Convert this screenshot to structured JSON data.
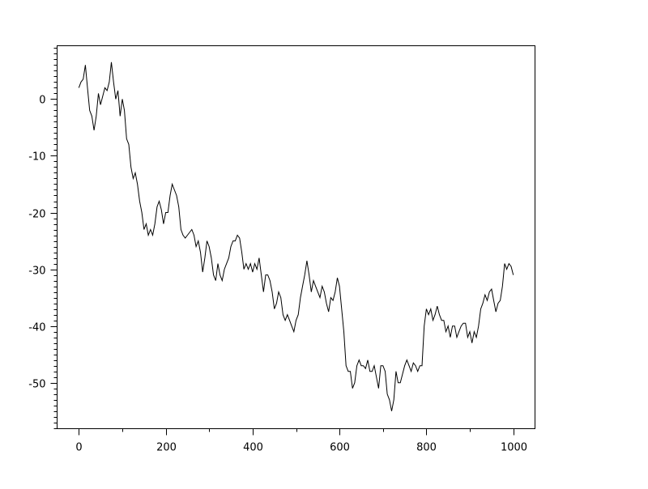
{
  "chart_data": {
    "type": "line",
    "title": "",
    "xlabel": "",
    "ylabel": "",
    "xlim": [
      -50,
      1050
    ],
    "ylim": [
      -58.1,
      9.4
    ],
    "x_ticks": [
      0,
      200,
      400,
      600,
      800,
      1000
    ],
    "x_minor_ticks": [
      100,
      300,
      500,
      700,
      900
    ],
    "y_ticks": [
      0,
      -10,
      -20,
      -30,
      -40,
      -50
    ],
    "y_minor_step": 1,
    "grid": false,
    "line_color": "#000000",
    "series": [
      {
        "points": [
          [
            0,
            2
          ],
          [
            5,
            3
          ],
          [
            10,
            3.5
          ],
          [
            15,
            6
          ],
          [
            20,
            2
          ],
          [
            25,
            -2
          ],
          [
            30,
            -3
          ],
          [
            35,
            -5.5
          ],
          [
            40,
            -3
          ],
          [
            45,
            1
          ],
          [
            50,
            -1
          ],
          [
            55,
            0.5
          ],
          [
            60,
            2
          ],
          [
            65,
            1.5
          ],
          [
            70,
            3
          ],
          [
            75,
            6.5
          ],
          [
            80,
            3
          ],
          [
            85,
            0
          ],
          [
            90,
            1.5
          ],
          [
            95,
            -3
          ],
          [
            100,
            0
          ],
          [
            105,
            -2
          ],
          [
            110,
            -7
          ],
          [
            115,
            -8
          ],
          [
            120,
            -12
          ],
          [
            125,
            -14
          ],
          [
            130,
            -13
          ],
          [
            135,
            -15
          ],
          [
            140,
            -18
          ],
          [
            145,
            -20
          ],
          [
            150,
            -23
          ],
          [
            155,
            -22
          ],
          [
            160,
            -24
          ],
          [
            165,
            -23
          ],
          [
            170,
            -24
          ],
          [
            175,
            -22
          ],
          [
            180,
            -19
          ],
          [
            185,
            -18
          ],
          [
            190,
            -19.5
          ],
          [
            195,
            -22
          ],
          [
            200,
            -20
          ],
          [
            205,
            -20
          ],
          [
            210,
            -17
          ],
          [
            215,
            -15
          ],
          [
            220,
            -16
          ],
          [
            225,
            -17
          ],
          [
            230,
            -19
          ],
          [
            235,
            -23
          ],
          [
            240,
            -24
          ],
          [
            245,
            -24.5
          ],
          [
            250,
            -24
          ],
          [
            255,
            -23.5
          ],
          [
            260,
            -23
          ],
          [
            265,
            -24
          ],
          [
            270,
            -26
          ],
          [
            275,
            -25
          ],
          [
            280,
            -27
          ],
          [
            285,
            -30.5
          ],
          [
            290,
            -28
          ],
          [
            295,
            -25
          ],
          [
            300,
            -26
          ],
          [
            305,
            -28
          ],
          [
            310,
            -31
          ],
          [
            315,
            -32
          ],
          [
            320,
            -29
          ],
          [
            325,
            -31
          ],
          [
            330,
            -32
          ],
          [
            335,
            -30
          ],
          [
            340,
            -29
          ],
          [
            345,
            -28
          ],
          [
            350,
            -26
          ],
          [
            355,
            -25
          ],
          [
            360,
            -25
          ],
          [
            365,
            -24
          ],
          [
            370,
            -24.5
          ],
          [
            375,
            -27
          ],
          [
            380,
            -30
          ],
          [
            385,
            -29
          ],
          [
            390,
            -30
          ],
          [
            395,
            -29
          ],
          [
            400,
            -30.5
          ],
          [
            405,
            -29
          ],
          [
            410,
            -30
          ],
          [
            415,
            -28
          ],
          [
            420,
            -31
          ],
          [
            425,
            -34
          ],
          [
            430,
            -31
          ],
          [
            435,
            -31
          ],
          [
            440,
            -32
          ],
          [
            445,
            -34
          ],
          [
            450,
            -37
          ],
          [
            455,
            -36
          ],
          [
            460,
            -34
          ],
          [
            465,
            -35
          ],
          [
            470,
            -38
          ],
          [
            475,
            -39
          ],
          [
            480,
            -38
          ],
          [
            485,
            -39
          ],
          [
            490,
            -40
          ],
          [
            495,
            -41
          ],
          [
            500,
            -39
          ],
          [
            505,
            -38
          ],
          [
            510,
            -35
          ],
          [
            515,
            -33
          ],
          [
            520,
            -31
          ],
          [
            525,
            -28.5
          ],
          [
            530,
            -31
          ],
          [
            535,
            -34
          ],
          [
            540,
            -32
          ],
          [
            545,
            -33
          ],
          [
            550,
            -34
          ],
          [
            555,
            -35
          ],
          [
            560,
            -33
          ],
          [
            565,
            -34
          ],
          [
            570,
            -36
          ],
          [
            575,
            -37.5
          ],
          [
            580,
            -35
          ],
          [
            585,
            -35.5
          ],
          [
            590,
            -34
          ],
          [
            595,
            -31.5
          ],
          [
            600,
            -33
          ],
          [
            605,
            -37
          ],
          [
            610,
            -41
          ],
          [
            615,
            -47
          ],
          [
            620,
            -48
          ],
          [
            625,
            -48
          ],
          [
            630,
            -51
          ],
          [
            635,
            -50
          ],
          [
            640,
            -47
          ],
          [
            645,
            -46
          ],
          [
            650,
            -47
          ],
          [
            655,
            -47
          ],
          [
            660,
            -47.5
          ],
          [
            665,
            -46
          ],
          [
            670,
            -48
          ],
          [
            675,
            -48
          ],
          [
            680,
            -47
          ],
          [
            685,
            -49
          ],
          [
            690,
            -51
          ],
          [
            695,
            -47
          ],
          [
            700,
            -47
          ],
          [
            705,
            -48
          ],
          [
            710,
            -52
          ],
          [
            715,
            -53
          ],
          [
            720,
            -55
          ],
          [
            725,
            -53
          ],
          [
            730,
            -48
          ],
          [
            735,
            -50
          ],
          [
            740,
            -50
          ],
          [
            745,
            -48.5
          ],
          [
            750,
            -47
          ],
          [
            755,
            -46
          ],
          [
            760,
            -47
          ],
          [
            765,
            -48
          ],
          [
            770,
            -46.5
          ],
          [
            775,
            -47
          ],
          [
            780,
            -48
          ],
          [
            785,
            -47
          ],
          [
            790,
            -47
          ],
          [
            795,
            -40
          ],
          [
            800,
            -37
          ],
          [
            805,
            -38
          ],
          [
            810,
            -37
          ],
          [
            815,
            -39
          ],
          [
            820,
            -38
          ],
          [
            825,
            -36.5
          ],
          [
            830,
            -38
          ],
          [
            835,
            -39
          ],
          [
            840,
            -39
          ],
          [
            845,
            -41
          ],
          [
            850,
            -40
          ],
          [
            855,
            -42
          ],
          [
            860,
            -40
          ],
          [
            865,
            -40
          ],
          [
            870,
            -42
          ],
          [
            875,
            -41
          ],
          [
            880,
            -40
          ],
          [
            885,
            -39.5
          ],
          [
            890,
            -39.5
          ],
          [
            895,
            -42
          ],
          [
            900,
            -41
          ],
          [
            905,
            -43
          ],
          [
            910,
            -41
          ],
          [
            915,
            -42
          ],
          [
            920,
            -40
          ],
          [
            925,
            -37
          ],
          [
            930,
            -36
          ],
          [
            935,
            -34.5
          ],
          [
            940,
            -35.5
          ],
          [
            945,
            -34
          ],
          [
            950,
            -33.5
          ],
          [
            955,
            -35.5
          ],
          [
            960,
            -37.5
          ],
          [
            965,
            -36
          ],
          [
            970,
            -35.5
          ],
          [
            975,
            -33
          ],
          [
            980,
            -29
          ],
          [
            985,
            -30
          ],
          [
            990,
            -29
          ],
          [
            995,
            -29.5
          ],
          [
            1000,
            -31
          ]
        ]
      }
    ]
  }
}
